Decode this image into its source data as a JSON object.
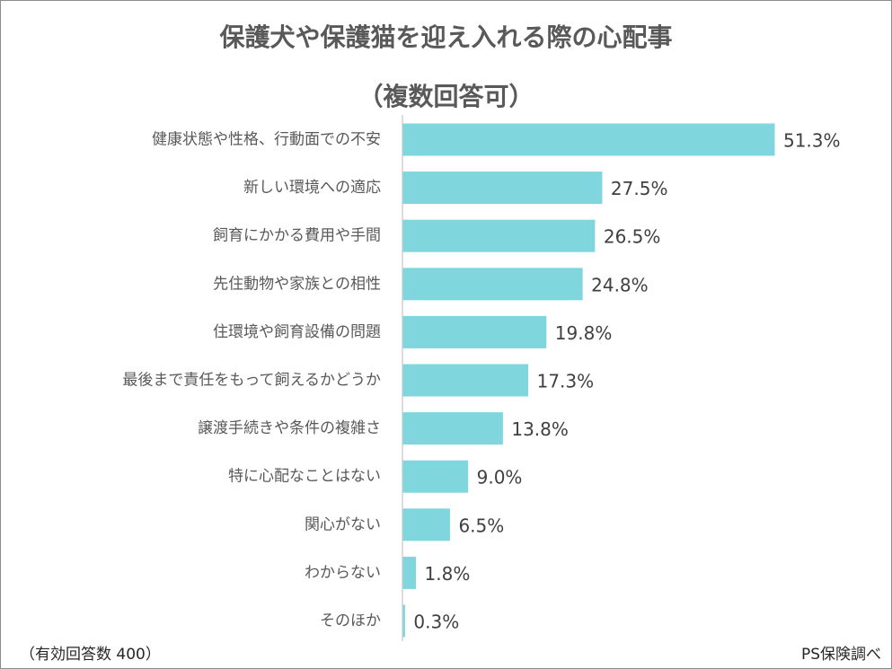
{
  "chart_data": {
    "type": "bar",
    "orientation": "horizontal",
    "title": "保護犬や保護猫を迎え入れる際の心配事",
    "subtitle": "（複数回答可）",
    "categories": [
      "健康状態や性格、行動面での不安",
      "新しい環境への適応",
      "飼育にかかる費用や手間",
      "先住動物や家族との相性",
      "住環境や飼育設備の問題",
      "最後まで責任をもって飼えるかどうか",
      "譲渡手続きや条件の複雑さ",
      "特に心配なことはない",
      "関心がない",
      "わからない",
      "そのほか"
    ],
    "values": [
      51.3,
      27.5,
      26.5,
      24.8,
      19.8,
      17.3,
      13.8,
      9.0,
      6.5,
      1.8,
      0.3
    ],
    "value_labels": [
      "51.3%",
      "27.5%",
      "26.5%",
      "24.8%",
      "19.8%",
      "17.3%",
      "13.8%",
      "9.0%",
      "6.5%",
      "1.8%",
      "0.3%"
    ],
    "bar_color": "#7fd6dc",
    "axis_color": "#d0d0d0",
    "grid": false,
    "legend": "none"
  },
  "footer": {
    "sample_note": "（有効回答数 400）",
    "source": "PS保険調べ"
  }
}
